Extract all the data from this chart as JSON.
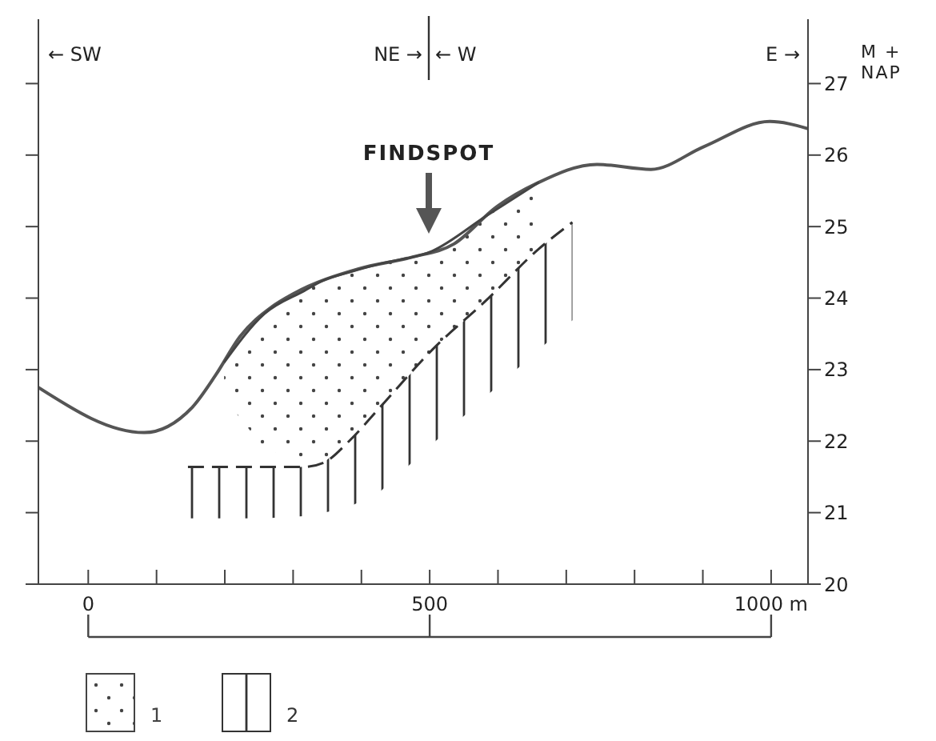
{
  "chart_data": {
    "type": "line",
    "ylabel": "M + NAP",
    "xlim": [
      -73,
      1054
    ],
    "ylim": [
      20,
      27.9
    ],
    "xticks": [
      0,
      {
        "value": 100,
        "label": null
      },
      {
        "value": 200,
        "label": null
      },
      {
        "value": 300,
        "label": null
      },
      {
        "value": 400,
        "label": null
      },
      500,
      {
        "value": 600,
        "label": null
      },
      {
        "value": 700,
        "label": null
      },
      {
        "value": 800,
        "label": null
      },
      {
        "value": 900,
        "label": null
      },
      {
        "value": 1000,
        "label": "1000 m"
      }
    ],
    "yticks": [
      20,
      21,
      22,
      23,
      24,
      25,
      26,
      27
    ],
    "series": [
      {
        "color": "#555555",
        "x": [
          -73,
          82,
          152,
          187,
          222,
          269,
          300,
          396,
          473,
          536,
          597,
          658,
          745,
          824,
          902,
          998,
          1054
        ],
        "values": [
          22.75,
          22.12,
          22.47,
          22.93,
          23.46,
          23.88,
          24.06,
          24.41,
          24.57,
          24.76,
          25.27,
          25.61,
          25.87,
          25.8,
          26.12,
          26.47,
          26.37
        ]
      },
      {
        "name": "1",
        "color": "#444444",
        "x": [
          199,
          258,
          316,
          345,
          382,
          427,
          504,
          583,
          660
        ],
        "lower": [
          22.6,
          21.9,
          21.7,
          21.7,
          22.0,
          22.47,
          23.28,
          23.97,
          24.69
        ],
        "upper": [
          23.1,
          23.78,
          24.1,
          24.25,
          24.36,
          24.48,
          24.66,
          25.15,
          25.62
        ],
        "values": [
          23.1,
          23.78,
          24.1,
          24.25,
          24.36,
          24.48,
          24.66,
          25.15,
          25.62
        ]
      },
      {
        "name": "2",
        "color": "#333333",
        "line_style": "dashed",
        "x": [
          146,
          199,
          258,
          316,
          345,
          382,
          427,
          504,
          583,
          660,
          709
        ],
        "lower": [
          20.92,
          20.92,
          20.92,
          20.95,
          21.0,
          21.08,
          21.29,
          21.96,
          22.63,
          23.28,
          23.69
        ],
        "upper": [
          21.64,
          21.64,
          21.64,
          21.64,
          21.7,
          22.0,
          22.47,
          23.28,
          23.97,
          24.69,
          25.06
        ],
        "values": [
          21.64,
          21.64,
          21.64,
          21.64,
          21.7,
          22.0,
          22.47,
          23.28,
          23.97,
          24.69,
          25.06
        ]
      }
    ],
    "annotations": [
      "FINDSPOT",
      "← SW",
      "NE →",
      "← W",
      "E →"
    ],
    "legend": "bottom",
    "grid": false
  }
}
